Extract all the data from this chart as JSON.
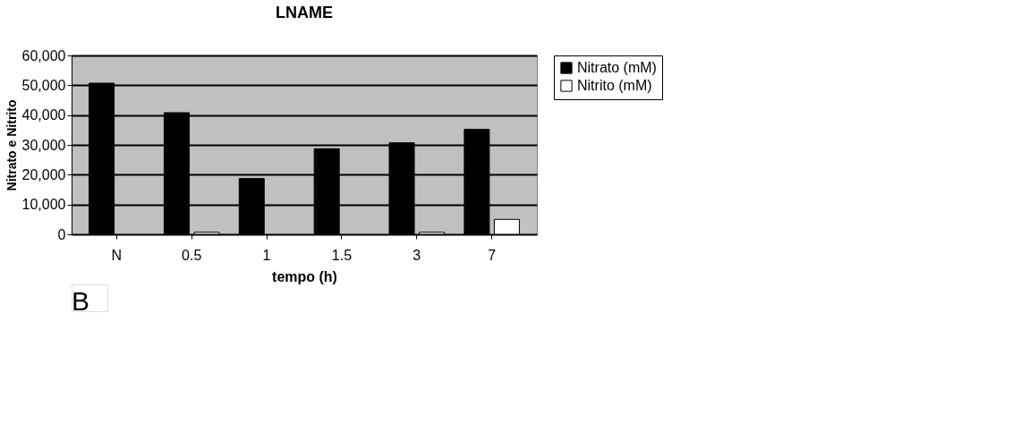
{
  "chart_data": {
    "type": "bar",
    "title": "LNAME",
    "xlabel": "tempo (h)",
    "ylabel": "Nitrato e Nitrito",
    "categories": [
      "N",
      "0.5",
      "1",
      "1.5",
      "3",
      "7"
    ],
    "series": [
      {
        "name": "Nitrato (mM)",
        "color": "#000000",
        "values": [
          50700,
          40800,
          18700,
          28700,
          30700,
          35200
        ]
      },
      {
        "name": "Nitrito (mM)",
        "color": "#ffffff",
        "values": [
          null,
          700,
          null,
          null,
          700,
          5000
        ]
      }
    ],
    "ylim": [
      0,
      60000
    ],
    "yticks": [
      0,
      {
        "value": 10000,
        "label": "10,000"
      },
      {
        "value": 20000,
        "label": "20,000"
      },
      {
        "value": 30000,
        "label": "30,000"
      },
      {
        "value": 40000,
        "label": "40,000"
      },
      {
        "value": 50000,
        "label": "50,000"
      },
      {
        "value": 60000,
        "label": "60,000"
      }
    ],
    "grid": "y",
    "legend": "right",
    "annotations": [
      "B"
    ]
  }
}
